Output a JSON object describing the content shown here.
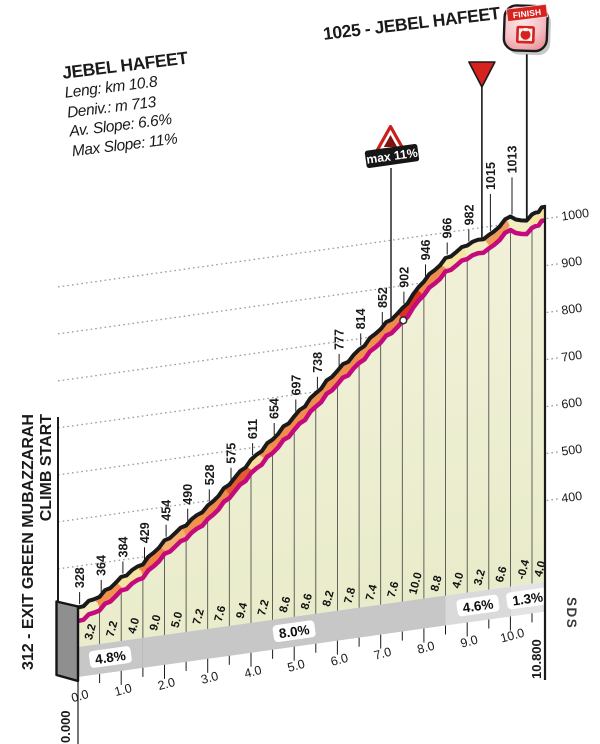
{
  "header": {
    "title": "JEBEL HAFEET",
    "stats": [
      "Leng: km 10.8",
      "Deniv.: m 713",
      "Av. Slope: 6.6%",
      "Max Slope: 11%"
    ]
  },
  "summit": {
    "label": "1025 - JEBEL HAFEET",
    "finish_icon_text": "FINISH"
  },
  "start_label": {
    "line1": "312 - EXIT GREEN MUBAZZARAH",
    "line2": "CLIMB START"
  },
  "corner_labels": {
    "start_km": "0.000",
    "end_km": "10.800",
    "watermark": "SDS"
  },
  "max_sign": {
    "label": "max 11%",
    "km": 7.5
  },
  "chart_data": {
    "type": "area",
    "title": "Jebel Hafeet climb profile",
    "x_unit": "km",
    "y_unit": "m",
    "xlim": [
      0,
      10.8
    ],
    "y_axis_ticks": [
      400,
      500,
      600,
      700,
      800,
      900,
      1000
    ],
    "km_tick_labels": [
      "0.0",
      "1.0",
      "2.0",
      "3.0",
      "4.0",
      "5.0",
      "6.0",
      "7.0",
      "8.0",
      "9.0",
      "10.0"
    ],
    "start_elev": 312,
    "summit_elev": 1025,
    "points": [
      {
        "km": 0.0,
        "elev": 312
      },
      {
        "km": 0.5,
        "elev": 328
      },
      {
        "km": 1.0,
        "elev": 364
      },
      {
        "km": 1.5,
        "elev": 384
      },
      {
        "km": 2.0,
        "elev": 429
      },
      {
        "km": 2.5,
        "elev": 454
      },
      {
        "km": 3.0,
        "elev": 490
      },
      {
        "km": 3.5,
        "elev": 528
      },
      {
        "km": 4.0,
        "elev": 575
      },
      {
        "km": 4.5,
        "elev": 611
      },
      {
        "km": 5.0,
        "elev": 654
      },
      {
        "km": 5.5,
        "elev": 697
      },
      {
        "km": 6.0,
        "elev": 738
      },
      {
        "km": 6.5,
        "elev": 777
      },
      {
        "km": 7.0,
        "elev": 814
      },
      {
        "km": 7.5,
        "elev": 852
      },
      {
        "km": 8.0,
        "elev": 902
      },
      {
        "km": 8.5,
        "elev": 946
      },
      {
        "km": 9.0,
        "elev": 966
      },
      {
        "km": 9.5,
        "elev": 982
      },
      {
        "km": 10.0,
        "elev": 1015
      },
      {
        "km": 10.5,
        "elev": 1013
      },
      {
        "km": 10.8,
        "elev": 1025
      }
    ],
    "segment_gradients": [
      {
        "from": 0.0,
        "to": 0.5,
        "pct": 3.2
      },
      {
        "from": 0.5,
        "to": 1.0,
        "pct": 7.2
      },
      {
        "from": 1.0,
        "to": 1.5,
        "pct": 4.0
      },
      {
        "from": 1.5,
        "to": 2.0,
        "pct": 9.0
      },
      {
        "from": 2.0,
        "to": 2.5,
        "pct": 5.0
      },
      {
        "from": 2.5,
        "to": 3.0,
        "pct": 7.2
      },
      {
        "from": 3.0,
        "to": 3.5,
        "pct": 7.6
      },
      {
        "from": 3.5,
        "to": 4.0,
        "pct": 9.4
      },
      {
        "from": 4.0,
        "to": 4.5,
        "pct": 7.2
      },
      {
        "from": 4.5,
        "to": 5.0,
        "pct": 8.6
      },
      {
        "from": 5.0,
        "to": 5.5,
        "pct": 8.6
      },
      {
        "from": 5.5,
        "to": 6.0,
        "pct": 8.2
      },
      {
        "from": 6.0,
        "to": 6.5,
        "pct": 7.8
      },
      {
        "from": 6.5,
        "to": 7.0,
        "pct": 7.4
      },
      {
        "from": 7.0,
        "to": 7.5,
        "pct": 7.6
      },
      {
        "from": 7.5,
        "to": 8.0,
        "pct": 10.0
      },
      {
        "from": 8.0,
        "to": 8.5,
        "pct": 8.8
      },
      {
        "from": 8.5,
        "to": 9.0,
        "pct": 4.0
      },
      {
        "from": 9.0,
        "to": 9.5,
        "pct": 3.2
      },
      {
        "from": 9.5,
        "to": 10.0,
        "pct": 6.6
      },
      {
        "from": 10.0,
        "to": 10.5,
        "pct": -0.4
      },
      {
        "from": 10.5,
        "to": 10.8,
        "pct": 4.0
      }
    ],
    "sections": [
      {
        "from": 0.0,
        "to": 1.5,
        "label": "4.8%",
        "band_color": "#C7C7C7"
      },
      {
        "from": 1.5,
        "to": 8.5,
        "label": "8.0%",
        "band_color": "#C7C7C7"
      },
      {
        "from": 8.5,
        "to": 10.0,
        "label": "4.6%",
        "band_color": "#DADADA"
      },
      {
        "from": 10.0,
        "to": 10.8,
        "label": "1.3%",
        "band_color": "#E3E3E3"
      }
    ],
    "band_spans": [
      {
        "from": 0.0,
        "to": 0.5,
        "color": "#F3EDC2"
      },
      {
        "from": 0.5,
        "to": 1.0,
        "color": "#F0914E"
      },
      {
        "from": 1.0,
        "to": 1.5,
        "color": "#F7E3A0"
      },
      {
        "from": 1.5,
        "to": 2.0,
        "color": "#EE8446"
      },
      {
        "from": 2.0,
        "to": 2.5,
        "color": "#F3B06E"
      },
      {
        "from": 2.5,
        "to": 3.0,
        "color": "#F0914E"
      },
      {
        "from": 3.0,
        "to": 3.5,
        "color": "#EF8A4A"
      },
      {
        "from": 3.5,
        "to": 4.0,
        "color": "#E25C2D"
      },
      {
        "from": 4.0,
        "to": 4.3,
        "color": "#F7DE9A"
      },
      {
        "from": 4.3,
        "to": 4.5,
        "color": "#F0914E"
      },
      {
        "from": 4.5,
        "to": 5.5,
        "color": "#F08B4B"
      },
      {
        "from": 5.5,
        "to": 6.5,
        "color": "#EF8D4C"
      },
      {
        "from": 6.5,
        "to": 7.0,
        "color": "#F0914E"
      },
      {
        "from": 7.0,
        "to": 7.5,
        "color": "#EF8A4A"
      },
      {
        "from": 7.5,
        "to": 7.95,
        "color": "#DC321F"
      },
      {
        "from": 7.95,
        "to": 8.5,
        "color": "#EF8D4C"
      },
      {
        "from": 8.5,
        "to": 9.0,
        "color": "#F7E3A0"
      },
      {
        "from": 9.0,
        "to": 9.5,
        "color": "#F3EDC2"
      },
      {
        "from": 9.5,
        "to": 10.0,
        "color": "#F09B58"
      },
      {
        "from": 10.0,
        "to": 10.5,
        "color": "#F3EDC2"
      },
      {
        "from": 10.5,
        "to": 10.8,
        "color": "#F7E3A0"
      }
    ],
    "markers": {
      "finish_icon_km": 10.38,
      "finish_triangle_km": 9.34,
      "max_dot_km": 7.5
    },
    "palette": {
      "outline": "#1A1A1A",
      "magenta_line": "#C30B7E",
      "fill_top": "#F4F2DE",
      "fill_bottom": "#E9ECCA",
      "grid": "#9B9B9B",
      "separator": "#3F3F3F",
      "red": "#D6231E",
      "wall": "#8F8F8F",
      "sign_bg": "#161616"
    }
  }
}
